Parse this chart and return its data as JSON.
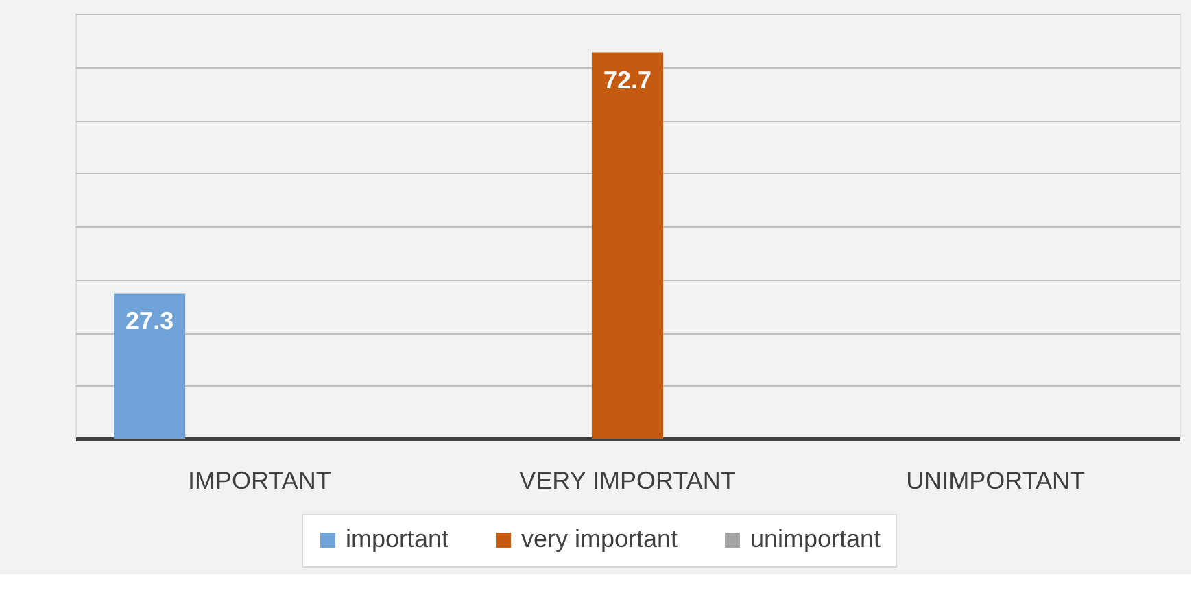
{
  "chart_data": {
    "type": "bar",
    "categories": [
      "IMPORTANT",
      "VERY IMPORTANT",
      "UNIMPORTANT"
    ],
    "series": [
      {
        "name": "important",
        "color": "#6fa3d8",
        "values": [
          27.3,
          null,
          null
        ]
      },
      {
        "name": "very important",
        "color": "#c55a11",
        "values": [
          null,
          72.7,
          null
        ]
      },
      {
        "name": "unimportant",
        "color": "#a5a5a5",
        "values": [
          null,
          null,
          null
        ]
      }
    ],
    "ylim": [
      0,
      80
    ],
    "tick_labels": "x",
    "grid": "y",
    "legend": "bottom",
    "data_labels": true
  }
}
